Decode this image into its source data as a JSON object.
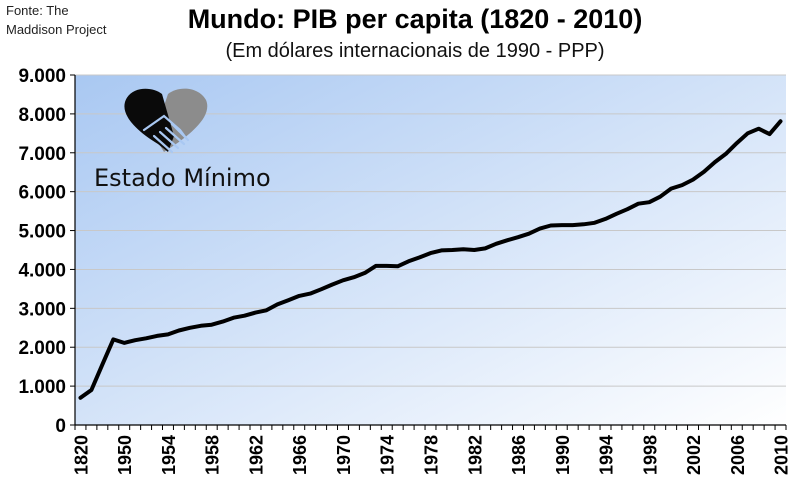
{
  "source": {
    "line1": "Fonte: The",
    "line2": "Maddison Project"
  },
  "logo": {
    "text": "Estado Mínimo",
    "icon": "handshake-heart-icon"
  },
  "colors": {
    "plot_bg_top": "#a9c8f2",
    "plot_bg_bottom": "#ffffff",
    "line": "#000000",
    "grid": "#c8c8c8",
    "logo_dark": "#0a0a0a",
    "logo_gray": "#8c8c8c"
  },
  "chart_data": {
    "type": "line",
    "title": "Mundo: PIB per capita (1820 - 2010)",
    "subtitle": "(Em dólares internacionais de 1990 - PPP)",
    "xlabel": "",
    "ylabel": "",
    "ylim": [
      0,
      9000
    ],
    "yticks": [
      "0",
      "1.000",
      "2.000",
      "3.000",
      "4.000",
      "5.000",
      "6.000",
      "7.000",
      "8.000",
      "9.000"
    ],
    "xticks": [
      "1820",
      "1950",
      "1954",
      "1958",
      "1962",
      "1966",
      "1970",
      "1974",
      "1978",
      "1982",
      "1986",
      "1990",
      "1994",
      "1998",
      "2002",
      "2006",
      "2010"
    ],
    "grid": true,
    "legend": "none",
    "x": [
      "1820",
      "1870",
      "1913",
      "1940",
      "1950",
      "1951",
      "1952",
      "1953",
      "1954",
      "1955",
      "1956",
      "1957",
      "1958",
      "1959",
      "1960",
      "1961",
      "1962",
      "1963",
      "1964",
      "1965",
      "1966",
      "1967",
      "1968",
      "1969",
      "1970",
      "1971",
      "1972",
      "1973",
      "1974",
      "1975",
      "1976",
      "1977",
      "1978",
      "1979",
      "1980",
      "1981",
      "1982",
      "1983",
      "1984",
      "1985",
      "1986",
      "1987",
      "1988",
      "1989",
      "1990",
      "1991",
      "1992",
      "1993",
      "1994",
      "1995",
      "1996",
      "1997",
      "1998",
      "1999",
      "2000",
      "2001",
      "2002",
      "2003",
      "2004",
      "2005",
      "2006",
      "2007",
      "2008",
      "2009",
      "2010"
    ],
    "values": [
      700,
      900,
      1550,
      2200,
      2110,
      2180,
      2230,
      2290,
      2330,
      2430,
      2500,
      2550,
      2580,
      2660,
      2760,
      2810,
      2890,
      2950,
      3100,
      3210,
      3320,
      3380,
      3490,
      3610,
      3720,
      3800,
      3910,
      4090,
      4090,
      4080,
      4210,
      4310,
      4420,
      4490,
      4500,
      4520,
      4500,
      4540,
      4660,
      4750,
      4830,
      4920,
      5050,
      5130,
      5140,
      5140,
      5160,
      5200,
      5300,
      5430,
      5550,
      5690,
      5730,
      5870,
      6080,
      6170,
      6310,
      6510,
      6760,
      6970,
      7250,
      7500,
      7620,
      7480,
      7810
    ]
  }
}
